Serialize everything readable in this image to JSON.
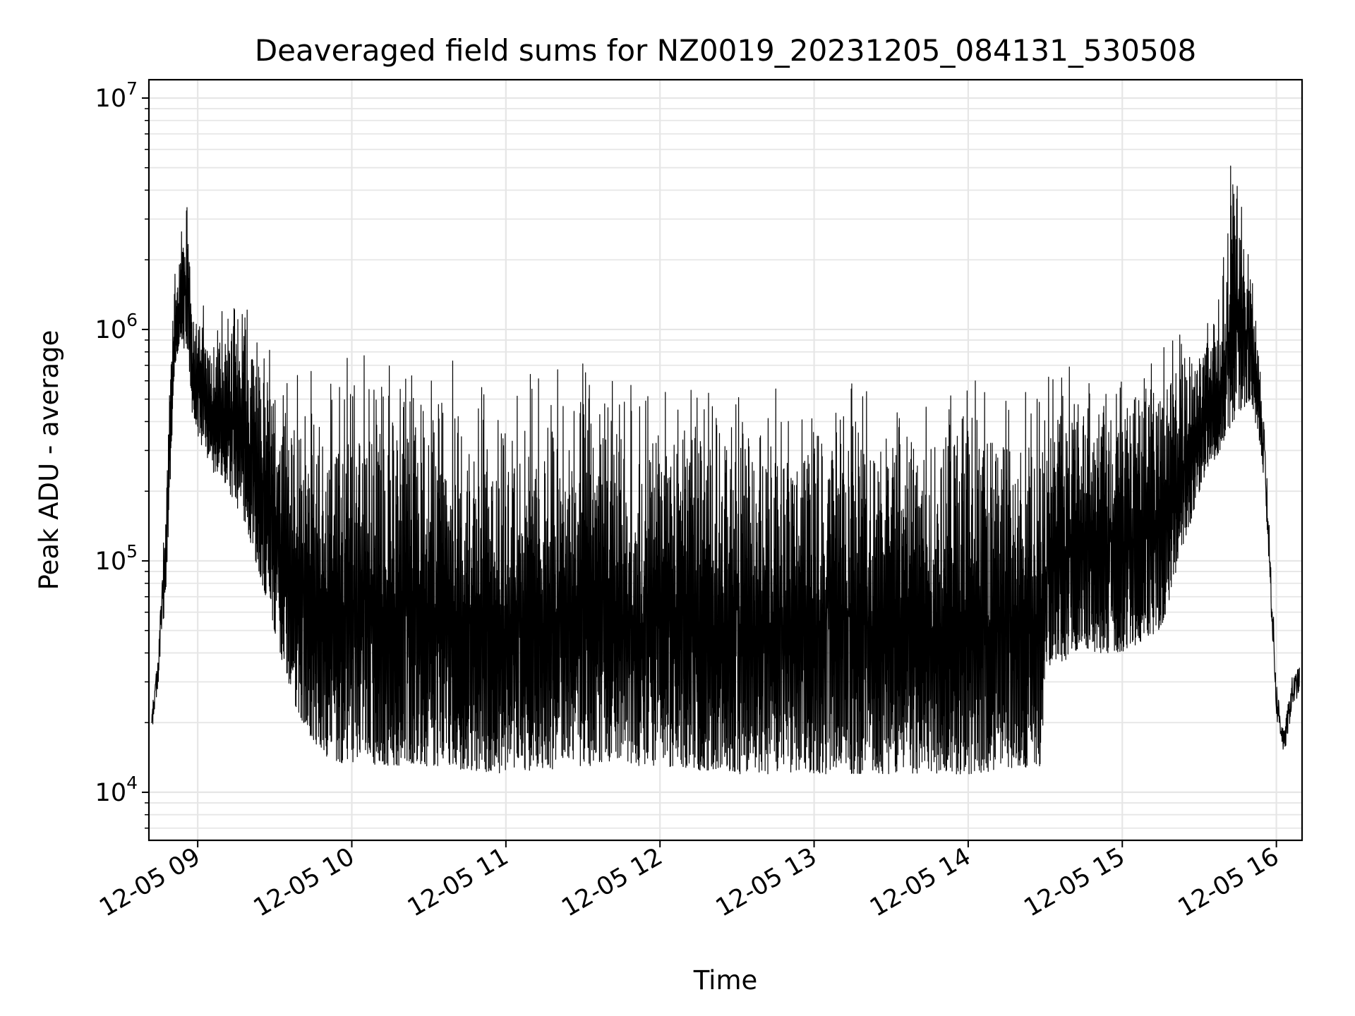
{
  "chart_data": {
    "type": "line",
    "title": "Deaveraged field sums for NZ0019_20231205_084131_530508",
    "xlabel": "Time",
    "ylabel": "Peak ADU - average",
    "yscale": "log",
    "ylim": [
      6200,
      12000000
    ],
    "xlim": [
      "2023-12-05 08:41",
      "2023-12-05 16:10"
    ],
    "grid": true,
    "line_color": "#000000",
    "grid_color": "#e6e6e6",
    "x_ticks": [
      {
        "label": "12-05 09",
        "time": "2023-12-05 09:00"
      },
      {
        "label": "12-05 10",
        "time": "2023-12-05 10:00"
      },
      {
        "label": "12-05 11",
        "time": "2023-12-05 11:00"
      },
      {
        "label": "12-05 12",
        "time": "2023-12-05 12:00"
      },
      {
        "label": "12-05 13",
        "time": "2023-12-05 13:00"
      },
      {
        "label": "12-05 14",
        "time": "2023-12-05 14:00"
      },
      {
        "label": "12-05 15",
        "time": "2023-12-05 15:00"
      },
      {
        "label": "12-05 16",
        "time": "2023-12-05 16:00"
      }
    ],
    "y_ticks": [
      {
        "base": "10",
        "exp": "4",
        "value": 10000
      },
      {
        "base": "10",
        "exp": "5",
        "value": 100000
      },
      {
        "base": "10",
        "exp": "6",
        "value": 1000000
      },
      {
        "base": "10",
        "exp": "7",
        "value": 10000000
      }
    ],
    "series": [
      {
        "envelope": [
          {
            "time": "2023-12-05 08:42",
            "low": 17000,
            "high": 22000
          },
          {
            "time": "2023-12-05 08:45",
            "low": 25000,
            "high": 60000
          },
          {
            "time": "2023-12-05 08:48",
            "low": 90000,
            "high": 320000
          },
          {
            "time": "2023-12-05 08:51",
            "low": 700000,
            "high": 2000000
          },
          {
            "time": "2023-12-05 08:54",
            "low": 900000,
            "high": 3000000
          },
          {
            "time": "2023-12-05 08:56",
            "low": 700000,
            "high": 4700000
          },
          {
            "time": "2023-12-05 08:58",
            "low": 400000,
            "high": 1500000
          },
          {
            "time": "2023-12-05 09:05",
            "low": 250000,
            "high": 1300000
          },
          {
            "time": "2023-12-05 09:12",
            "low": 200000,
            "high": 1300000
          },
          {
            "time": "2023-12-05 09:18",
            "low": 150000,
            "high": 1800000
          },
          {
            "time": "2023-12-05 09:25",
            "low": 80000,
            "high": 1300000
          },
          {
            "time": "2023-12-05 09:32",
            "low": 40000,
            "high": 900000
          },
          {
            "time": "2023-12-05 09:40",
            "low": 20000,
            "high": 800000
          },
          {
            "time": "2023-12-05 09:50",
            "low": 14000,
            "high": 800000
          },
          {
            "time": "2023-12-05 10:00",
            "low": 13000,
            "high": 900000
          },
          {
            "time": "2023-12-05 10:30",
            "low": 13000,
            "high": 800000
          },
          {
            "time": "2023-12-05 11:00",
            "low": 12000,
            "high": 700000
          },
          {
            "time": "2023-12-05 11:30",
            "low": 13000,
            "high": 800000
          },
          {
            "time": "2023-12-05 12:00",
            "low": 13000,
            "high": 700000
          },
          {
            "time": "2023-12-05 12:30",
            "low": 12000,
            "high": 700000
          },
          {
            "time": "2023-12-05 13:00",
            "low": 12000,
            "high": 800000
          },
          {
            "time": "2023-12-05 13:30",
            "low": 12000,
            "high": 700000
          },
          {
            "time": "2023-12-05 14:00",
            "low": 12000,
            "high": 800000
          },
          {
            "time": "2023-12-05 14:28",
            "low": 13000,
            "high": 600000
          },
          {
            "time": "2023-12-05 14:31",
            "low": 35000,
            "high": 700000
          },
          {
            "time": "2023-12-05 14:45",
            "low": 40000,
            "high": 900000
          },
          {
            "time": "2023-12-05 15:00",
            "low": 40000,
            "high": 800000
          },
          {
            "time": "2023-12-05 15:15",
            "low": 50000,
            "high": 1000000
          },
          {
            "time": "2023-12-05 15:30",
            "low": 200000,
            "high": 1100000
          },
          {
            "time": "2023-12-05 15:38",
            "low": 300000,
            "high": 1500000
          },
          {
            "time": "2023-12-05 15:43",
            "low": 400000,
            "high": 9000000
          },
          {
            "time": "2023-12-05 15:50",
            "low": 500000,
            "high": 2000000
          },
          {
            "time": "2023-12-05 15:54",
            "low": 300000,
            "high": 900000
          },
          {
            "time": "2023-12-05 15:57",
            "low": 80000,
            "high": 200000
          },
          {
            "time": "2023-12-05 16:00",
            "low": 18000,
            "high": 35000
          },
          {
            "time": "2023-12-05 16:03",
            "low": 13000,
            "high": 20000
          },
          {
            "time": "2023-12-05 16:06",
            "low": 20000,
            "high": 35000
          },
          {
            "time": "2023-12-05 16:09",
            "low": 25000,
            "high": 38000
          }
        ]
      }
    ]
  }
}
